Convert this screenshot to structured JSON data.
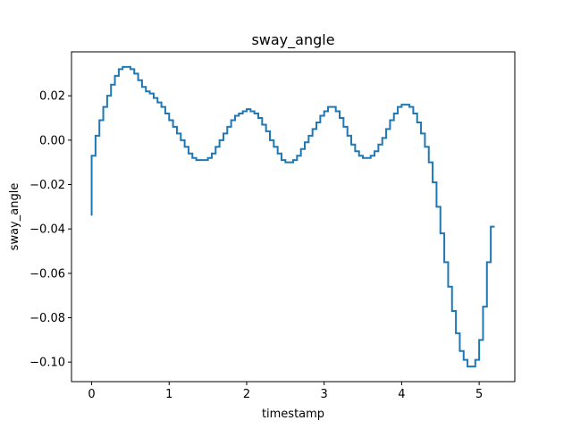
{
  "chart_data": {
    "type": "line",
    "step": true,
    "title": "sway_angle",
    "xlabel": "timestamp",
    "ylabel": "sway_angle",
    "xlim": [
      -0.26,
      5.46
    ],
    "ylim": [
      -0.1088,
      0.0398
    ],
    "x_ticks": [
      0,
      1,
      2,
      3,
      4,
      5
    ],
    "x_tick_labels": [
      "0",
      "1",
      "2",
      "3",
      "4",
      "5"
    ],
    "y_ticks": [
      -0.1,
      -0.08,
      -0.06,
      -0.04,
      -0.02,
      0.0,
      0.02
    ],
    "y_tick_labels": [
      "−0.10",
      "−0.08",
      "−0.06",
      "−0.04",
      "−0.02",
      "0.00",
      "0.02"
    ],
    "grid": false,
    "line_color": "#1f77b4",
    "series": [
      {
        "x": [
          0.0,
          0.05,
          0.1,
          0.15,
          0.2,
          0.25,
          0.3,
          0.35,
          0.4,
          0.45,
          0.5,
          0.55,
          0.6,
          0.65,
          0.7,
          0.75,
          0.8,
          0.85,
          0.9,
          0.95,
          1.0,
          1.05,
          1.1,
          1.15,
          1.2,
          1.25,
          1.3,
          1.35,
          1.4,
          1.45,
          1.5,
          1.55,
          1.6,
          1.65,
          1.7,
          1.75,
          1.8,
          1.85,
          1.9,
          1.95,
          2.0,
          2.05,
          2.1,
          2.15,
          2.2,
          2.25,
          2.3,
          2.35,
          2.4,
          2.45,
          2.5,
          2.55,
          2.6,
          2.65,
          2.7,
          2.75,
          2.8,
          2.85,
          2.9,
          2.95,
          3.0,
          3.05,
          3.1,
          3.15,
          3.2,
          3.25,
          3.3,
          3.35,
          3.4,
          3.45,
          3.5,
          3.55,
          3.6,
          3.65,
          3.7,
          3.75,
          3.8,
          3.85,
          3.9,
          3.95,
          4.0,
          4.05,
          4.1,
          4.15,
          4.2,
          4.25,
          4.3,
          4.35,
          4.4,
          4.45,
          4.5,
          4.55,
          4.6,
          4.65,
          4.7,
          4.75,
          4.8,
          4.85,
          4.9,
          4.95,
          5.0,
          5.05,
          5.1,
          5.15,
          5.2
        ],
        "y": [
          -0.034,
          -0.007,
          0.002,
          0.009,
          0.015,
          0.02,
          0.025,
          0.029,
          0.032,
          0.033,
          0.033,
          0.032,
          0.03,
          0.027,
          0.024,
          0.022,
          0.021,
          0.019,
          0.017,
          0.015,
          0.012,
          0.009,
          0.006,
          0.003,
          0.0,
          -0.003,
          -0.006,
          -0.008,
          -0.009,
          -0.009,
          -0.009,
          -0.008,
          -0.006,
          -0.003,
          0.0,
          0.003,
          0.006,
          0.009,
          0.011,
          0.012,
          0.013,
          0.014,
          0.013,
          0.012,
          0.01,
          0.007,
          0.004,
          0.0,
          -0.003,
          -0.006,
          -0.009,
          -0.01,
          -0.01,
          -0.009,
          -0.007,
          -0.004,
          -0.001,
          0.002,
          0.005,
          0.008,
          0.011,
          0.013,
          0.015,
          0.015,
          0.013,
          0.01,
          0.006,
          0.002,
          -0.002,
          -0.005,
          -0.007,
          -0.008,
          -0.008,
          -0.007,
          -0.005,
          -0.002,
          0.001,
          0.005,
          0.009,
          0.012,
          0.015,
          0.016,
          0.016,
          0.015,
          0.012,
          0.008,
          0.003,
          -0.003,
          -0.01,
          -0.019,
          -0.03,
          -0.042,
          -0.055,
          -0.066,
          -0.077,
          -0.087,
          -0.095,
          -0.099,
          -0.102,
          -0.102,
          -0.099,
          -0.09,
          -0.075,
          -0.055,
          -0.039
        ]
      }
    ]
  }
}
